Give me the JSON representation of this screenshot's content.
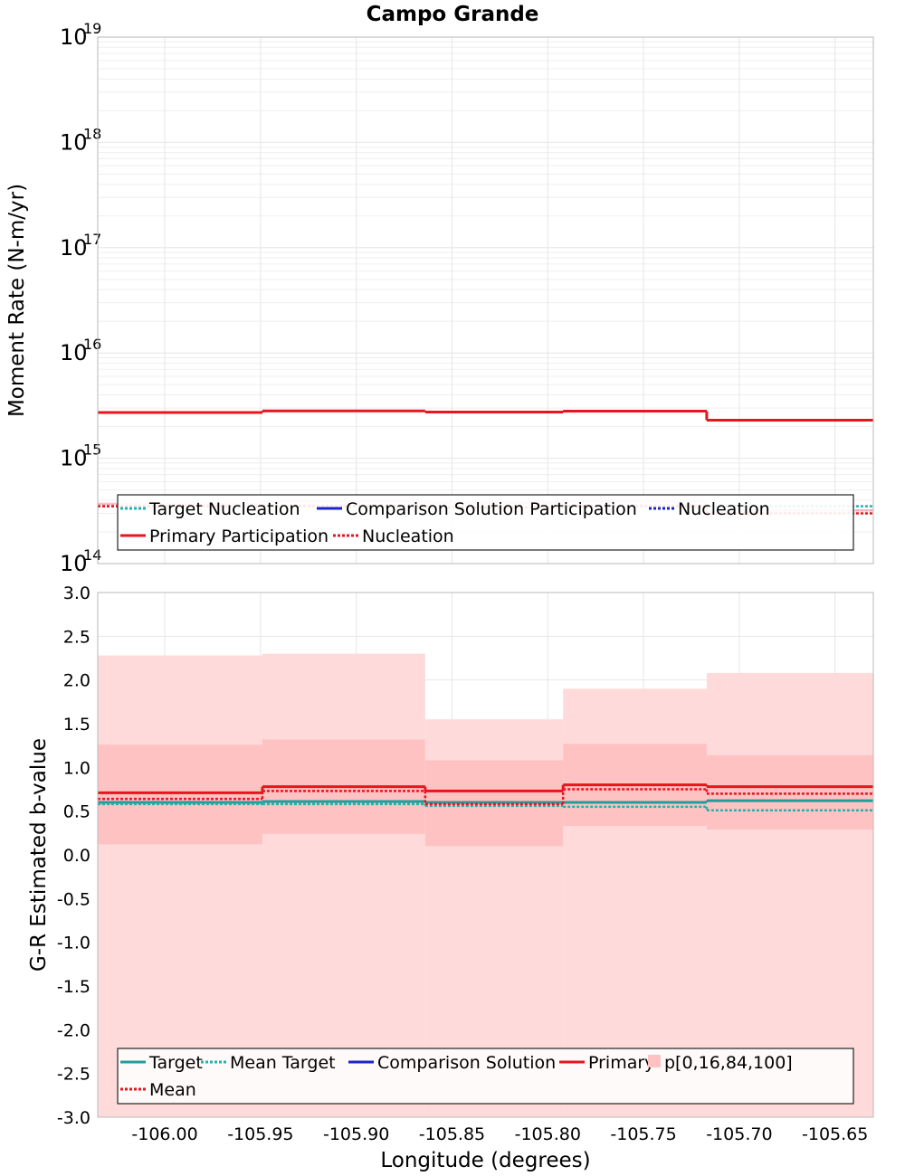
{
  "chart_data": [
    {
      "type": "line",
      "title": "Campo Grande",
      "xlabel": "Longitude (degrees)",
      "ylabel": "Moment Rate (N-m/yr)",
      "yscale": "log",
      "xlim": [
        -106.035,
        -105.63
      ],
      "ylim_exp": [
        14,
        19
      ],
      "ytick_base": "10",
      "ytick_exponents": [
        "14",
        "15",
        "16",
        "17",
        "18",
        "19"
      ],
      "grid": true,
      "legend_placement": "bottom",
      "bin_edges": [
        -106.035,
        -105.949,
        -105.864,
        -105.792,
        -105.717,
        -105.63
      ],
      "series": [
        {
          "name": "Target Nucleation",
          "color": "#1fb3ad",
          "dash": "dotted",
          "values": [
            350000000000000.0,
            350000000000000.0,
            350000000000000.0,
            350000000000000.0,
            350000000000000.0
          ]
        },
        {
          "name": "Comparison Solution Participation",
          "color": "#f5c4cc",
          "dash": "solid",
          "values": [
            370000000000000.0,
            390000000000000.0,
            380000000000000.0,
            390000000000000.0,
            320000000000000.0
          ]
        },
        {
          "name": "Nucleation",
          "color": "#f0a8b6",
          "dash": "dotted",
          "values": [
            360000000000000.0,
            360000000000000.0,
            350000000000000.0,
            360000000000000.0,
            320000000000000.0
          ]
        },
        {
          "name": "Primary Participation",
          "color": "#e8141e",
          "dash": "solid",
          "values": [
            2720000000000000.0,
            2820000000000000.0,
            2750000000000000.0,
            2800000000000000.0,
            2300000000000000.0
          ]
        },
        {
          "name": "Nucleation",
          "color": "#e8141e",
          "dash": "dotted",
          "values": [
            350000000000000.0,
            350000000000000.0,
            340000000000000.0,
            350000000000000.0,
            300000000000000.0
          ]
        }
      ],
      "legend": [
        {
          "label": "Target Nucleation",
          "color": "#1fb3ad",
          "style": "dotted"
        },
        {
          "label": "Comparison Solution Participation",
          "color": "#1a24c8",
          "style": "solid"
        },
        {
          "label": "Nucleation",
          "color": "#1a24c8",
          "style": "dotted"
        },
        {
          "label": "Primary Participation",
          "color": "#e8141e",
          "style": "solid"
        },
        {
          "label": "Nucleation",
          "color": "#e8141e",
          "style": "dotted"
        }
      ]
    },
    {
      "type": "line",
      "title": "",
      "xlabel": "Longitude (degrees)",
      "ylabel": "G-R Estimated b-value",
      "xlim": [
        -106.035,
        -105.63
      ],
      "ylim": [
        -3.0,
        3.0
      ],
      "xticks": [
        "-106.00",
        "-105.95",
        "-105.90",
        "-105.85",
        "-105.80",
        "-105.75",
        "-105.70",
        "-105.65"
      ],
      "xtick_values": [
        -106.0,
        -105.95,
        -105.9,
        -105.85,
        -105.8,
        -105.75,
        -105.7,
        -105.65
      ],
      "yticks": [
        "-3.0",
        "-2.5",
        "-2.0",
        "-1.5",
        "-1.0",
        "-0.5",
        "0.0",
        "0.5",
        "1.0",
        "1.5",
        "2.0",
        "2.5",
        "3.0"
      ],
      "ytick_values": [
        -3.0,
        -2.5,
        -2.0,
        -1.5,
        -1.0,
        -0.5,
        0.0,
        0.5,
        1.0,
        1.5,
        2.0,
        2.5,
        3.0
      ],
      "grid": true,
      "legend_placement": "bottom",
      "bin_edges": [
        -106.035,
        -105.949,
        -105.864,
        -105.792,
        -105.717,
        -105.63
      ],
      "bands": {
        "p0": [
          -3.0,
          -3.0,
          -3.0,
          -3.0,
          -3.0
        ],
        "p16": [
          0.12,
          0.24,
          0.1,
          0.33,
          0.29
        ],
        "p84": [
          1.26,
          1.32,
          1.08,
          1.27,
          1.14
        ],
        "p100": [
          2.28,
          2.3,
          1.55,
          1.9,
          2.08
        ],
        "outer_color": "#ffdada",
        "inner_color": "#ffc2c2"
      },
      "series": [
        {
          "name": "Target",
          "color": "#1f9e9a",
          "dash": "solid",
          "values": [
            0.6,
            0.61,
            0.6,
            0.6,
            0.62
          ]
        },
        {
          "name": "Mean Target",
          "color": "#1fb3ad",
          "dash": "dotted",
          "values": [
            0.58,
            0.58,
            0.56,
            0.55,
            0.51
          ]
        },
        {
          "name": "Primary",
          "color": "#e8141e",
          "dash": "solid",
          "values": [
            0.71,
            0.78,
            0.73,
            0.8,
            0.78
          ]
        },
        {
          "name": "Mean",
          "color": "#e8141e",
          "dash": "dotted",
          "values": [
            0.64,
            0.73,
            0.58,
            0.75,
            0.7
          ]
        }
      ],
      "legend": [
        {
          "label": "Target",
          "color": "#1f9e9a",
          "style": "solid"
        },
        {
          "label": "Mean Target",
          "color": "#1fb3ad",
          "style": "dotted"
        },
        {
          "label": "Comparison Solution",
          "color": "#1a24c8",
          "style": "solid"
        },
        {
          "label": "Primary",
          "color": "#e8141e",
          "style": "solid"
        },
        {
          "label": "p[0,16,84,100]",
          "color": "#ffc2c2",
          "style": "band"
        },
        {
          "label": "Mean",
          "color": "#e8141e",
          "style": "dotted"
        }
      ]
    }
  ]
}
